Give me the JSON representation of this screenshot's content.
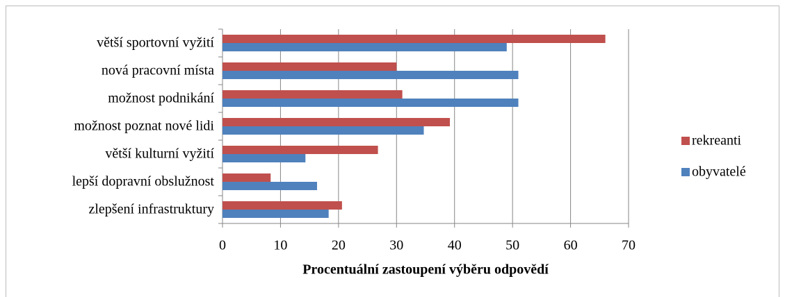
{
  "chart_data": {
    "type": "bar",
    "orientation": "horizontal",
    "categories": [
      "větší sportovní vyžití",
      "nová pracovní místa",
      "možnost podnikání",
      "možnost poznat nové lidi",
      "větší kulturní vyžití",
      "lepší dopravní obslužnost",
      "zlepšení infrastruktury"
    ],
    "series": [
      {
        "name": "rekreanti",
        "color": "#c0504d",
        "values": [
          66,
          30,
          31,
          39.2,
          26.8,
          8.3,
          20.6
        ]
      },
      {
        "name": "obyvatelé",
        "color": "#4f81bd",
        "values": [
          49,
          51,
          51,
          34.7,
          14.3,
          16.3,
          18.3
        ]
      }
    ],
    "xlabel": "Procentuální zastoupení výběru odpovědí",
    "xlim": [
      0,
      70
    ],
    "xticks": [
      0,
      10,
      20,
      30,
      40,
      50,
      60,
      70
    ],
    "grid": true,
    "legend": "right"
  }
}
